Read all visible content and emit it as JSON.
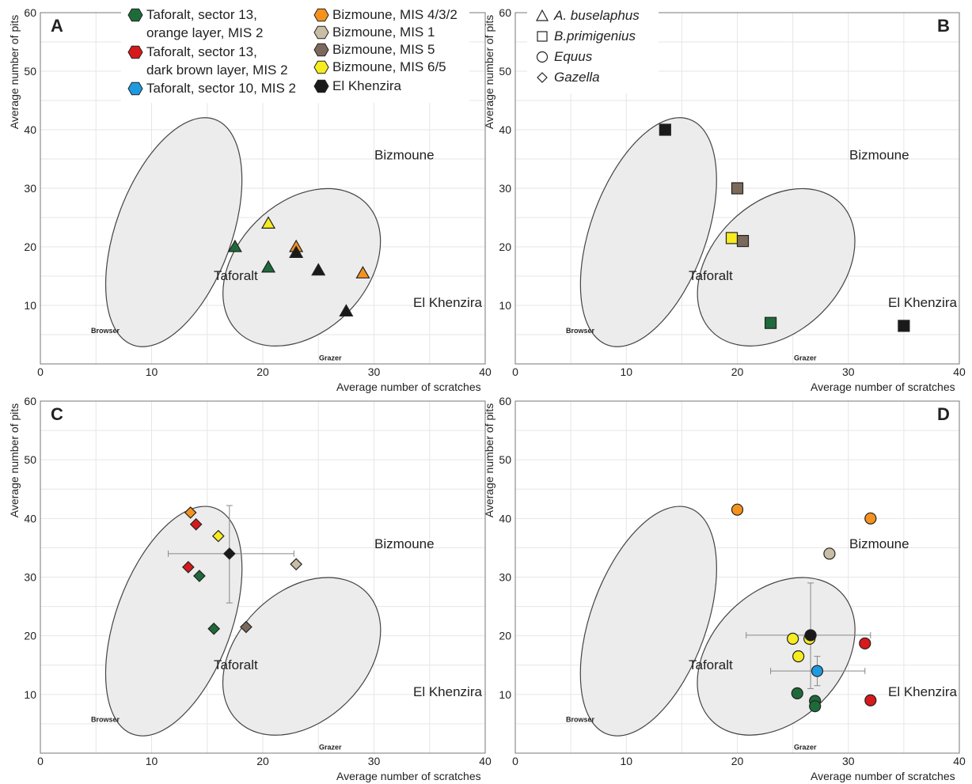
{
  "chart_data": [
    {
      "type": "scatter",
      "panel": "A",
      "xlabel": "Average number of scratches",
      "ylabel": "Average number of pits",
      "xlim": [
        0,
        40
      ],
      "ylim": [
        0,
        60
      ],
      "xticks": [
        "0",
        "10",
        "20",
        "30",
        "40"
      ],
      "yticks": [
        "10",
        "20",
        "30",
        "40",
        "50",
        "60"
      ],
      "grid": true,
      "region_labels": {
        "bizmoune": "Bizmoune",
        "taforalt": "Taforalt",
        "el_khenzira": "El Khenzira",
        "browser": "Browser",
        "grazer": "Grazer"
      },
      "points": [
        {
          "x": 17.5,
          "y": 20,
          "shape": "triangle",
          "group": "taforalt13orange"
        },
        {
          "x": 20.5,
          "y": 16.5,
          "shape": "triangle",
          "group": "taforalt13orange"
        },
        {
          "x": 20.5,
          "y": 24,
          "shape": "triangle",
          "group": "bizmoune65"
        },
        {
          "x": 23,
          "y": 20,
          "shape": "triangle",
          "group": "bizmoune432"
        },
        {
          "x": 23,
          "y": 19,
          "shape": "triangle",
          "group": "elkhenzira"
        },
        {
          "x": 25,
          "y": 16,
          "shape": "triangle",
          "group": "elkhenzira"
        },
        {
          "x": 27.5,
          "y": 9,
          "shape": "triangle",
          "group": "elkhenzira"
        },
        {
          "x": 29,
          "y": 15.5,
          "shape": "triangle",
          "group": "bizmoune432"
        }
      ]
    },
    {
      "type": "scatter",
      "panel": "B",
      "xlabel": "Average number of scratches",
      "ylabel": "Average number of pits",
      "xlim": [
        0,
        40
      ],
      "ylim": [
        0,
        60
      ],
      "xticks": [
        "0",
        "10",
        "20",
        "30",
        "40"
      ],
      "yticks": [
        "10",
        "20",
        "30",
        "40",
        "50",
        "60"
      ],
      "grid": true,
      "region_labels": {
        "bizmoune": "Bizmoune",
        "taforalt": "Taforalt",
        "el_khenzira": "El Khenzira",
        "browser": "Browser",
        "grazer": "Grazer"
      },
      "points": [
        {
          "x": 13.5,
          "y": 40,
          "shape": "square",
          "group": "elkhenzira"
        },
        {
          "x": 20,
          "y": 30,
          "shape": "square",
          "group": "bizmoune5"
        },
        {
          "x": 19.5,
          "y": 21.5,
          "shape": "square",
          "group": "bizmoune65"
        },
        {
          "x": 20.5,
          "y": 21,
          "shape": "square",
          "group": "bizmoune5"
        },
        {
          "x": 23,
          "y": 7,
          "shape": "square",
          "group": "taforalt13orange"
        },
        {
          "x": 35,
          "y": 6.5,
          "shape": "square",
          "group": "elkhenzira"
        }
      ]
    },
    {
      "type": "scatter",
      "panel": "C",
      "xlabel": "Average number of scratches",
      "ylabel": "Average number of pits",
      "xlim": [
        0,
        40
      ],
      "ylim": [
        0,
        60
      ],
      "xticks": [
        "0",
        "10",
        "20",
        "30",
        "40"
      ],
      "yticks": [
        "10",
        "20",
        "30",
        "40",
        "50",
        "60"
      ],
      "grid": true,
      "region_labels": {
        "bizmoune": "Bizmoune",
        "taforalt": "Taforalt",
        "el_khenzira": "El Khenzira",
        "browser": "Browser",
        "grazer": "Grazer"
      },
      "points": [
        {
          "x": 13.5,
          "y": 41,
          "shape": "diamond",
          "group": "bizmoune432"
        },
        {
          "x": 14,
          "y": 39,
          "shape": "diamond",
          "group": "taforalt13dark"
        },
        {
          "x": 16,
          "y": 37,
          "shape": "diamond",
          "group": "bizmoune65"
        },
        {
          "x": 17,
          "y": 34,
          "shape": "diamond",
          "group": "elkhenzira"
        },
        {
          "x": 13.3,
          "y": 31.7,
          "shape": "diamond",
          "group": "taforalt13dark"
        },
        {
          "x": 14.3,
          "y": 30.2,
          "shape": "diamond",
          "group": "taforalt13orange"
        },
        {
          "x": 23,
          "y": 32.2,
          "shape": "diamond",
          "group": "bizmoune1"
        },
        {
          "x": 15.6,
          "y": 21.2,
          "shape": "diamond",
          "group": "taforalt13orange"
        },
        {
          "x": 18.5,
          "y": 21.5,
          "shape": "diamond",
          "group": "bizmoune5"
        }
      ],
      "errorbars": [
        {
          "x": 17,
          "y": 34,
          "xerr": [
            11.5,
            22.8
          ],
          "yerr": [
            25.6,
            42.2
          ]
        }
      ]
    },
    {
      "type": "scatter",
      "panel": "D",
      "xlabel": "Average number of scratches",
      "ylabel": "Average number of pits",
      "xlim": [
        0,
        40
      ],
      "ylim": [
        0,
        60
      ],
      "xticks": [
        "0",
        "10",
        "20",
        "30",
        "40"
      ],
      "yticks": [
        "10",
        "20",
        "30",
        "40",
        "50",
        "60"
      ],
      "grid": true,
      "region_labels": {
        "bizmoune": "Bizmoune",
        "taforalt": "Taforalt",
        "el_khenzira": "El Khenzira",
        "browser": "Browser",
        "grazer": "Grazer"
      },
      "points": [
        {
          "x": 20,
          "y": 41.5,
          "shape": "circle",
          "group": "bizmoune432"
        },
        {
          "x": 32,
          "y": 40,
          "shape": "circle",
          "group": "bizmoune432"
        },
        {
          "x": 28.3,
          "y": 34,
          "shape": "circle",
          "group": "bizmoune1"
        },
        {
          "x": 25,
          "y": 19.5,
          "shape": "circle",
          "group": "bizmoune65"
        },
        {
          "x": 26.5,
          "y": 19.5,
          "shape": "circle",
          "group": "bizmoune65"
        },
        {
          "x": 26.6,
          "y": 20.1,
          "shape": "circle",
          "group": "elkhenzira"
        },
        {
          "x": 25.5,
          "y": 16.5,
          "shape": "circle",
          "group": "bizmoune65"
        },
        {
          "x": 31.5,
          "y": 18.7,
          "shape": "circle",
          "group": "taforalt13dark"
        },
        {
          "x": 27.2,
          "y": 14,
          "shape": "circle",
          "group": "taforalt10"
        },
        {
          "x": 25.4,
          "y": 10.2,
          "shape": "circle",
          "group": "taforalt13orange"
        },
        {
          "x": 27,
          "y": 8.9,
          "shape": "circle",
          "group": "taforalt13orange"
        },
        {
          "x": 27,
          "y": 8,
          "shape": "circle",
          "group": "taforalt13orange"
        },
        {
          "x": 32,
          "y": 9,
          "shape": "circle",
          "group": "taforalt13dark"
        }
      ],
      "errorbars": [
        {
          "x": 26.6,
          "y": 20.1,
          "xerr": [
            20.8,
            32
          ],
          "yerr": [
            11,
            29
          ]
        },
        {
          "x": 27.2,
          "y": 14,
          "xerr": [
            23,
            31.5
          ],
          "yerr": [
            11.5,
            16.5
          ]
        }
      ]
    }
  ],
  "ellipses": {
    "browser": {
      "cx": 12,
      "cy": 22.5,
      "rx": 5.2,
      "ry": 20.5,
      "rot_deg": 20
    },
    "grazer": {
      "cx": 23.5,
      "cy": 16.5,
      "rx": 5.8,
      "ry": 15.5,
      "rot_deg": 45
    }
  },
  "legend_groups": [
    {
      "key": "taforalt13orange",
      "color": "#1e6b3a",
      "lines": [
        "Taforalt, sector 13,",
        "orange layer, MIS 2"
      ]
    },
    {
      "key": "taforalt13dark",
      "color": "#d7191c",
      "lines": [
        "Taforalt, sector 13,",
        "dark brown layer, MIS 2"
      ]
    },
    {
      "key": "taforalt10",
      "color": "#1e9be0",
      "lines": [
        "Taforalt, sector 10, MIS 2"
      ]
    },
    {
      "key": "bizmoune432",
      "color": "#f5921e",
      "lines": [
        "Bizmoune, MIS 4/3/2"
      ]
    },
    {
      "key": "bizmoune1",
      "color": "#c9bda5",
      "lines": [
        "Bizmoune, MIS 1"
      ]
    },
    {
      "key": "bizmoune5",
      "color": "#7b6a5b",
      "lines": [
        "Bizmoune, MIS 5"
      ]
    },
    {
      "key": "bizmoune65",
      "color": "#f7ec20",
      "lines": [
        "Bizmoune, MIS 6/5"
      ]
    },
    {
      "key": "elkhenzira",
      "color": "#1a1a1a",
      "lines": [
        "El Khenzira"
      ]
    }
  ],
  "legend_taxa": [
    {
      "shape": "triangle",
      "label": "A. buselaphus"
    },
    {
      "shape": "square",
      "label": "B.primigenius"
    },
    {
      "shape": "circle",
      "label": "Equus"
    },
    {
      "shape": "diamond",
      "label": "Gazella"
    }
  ]
}
